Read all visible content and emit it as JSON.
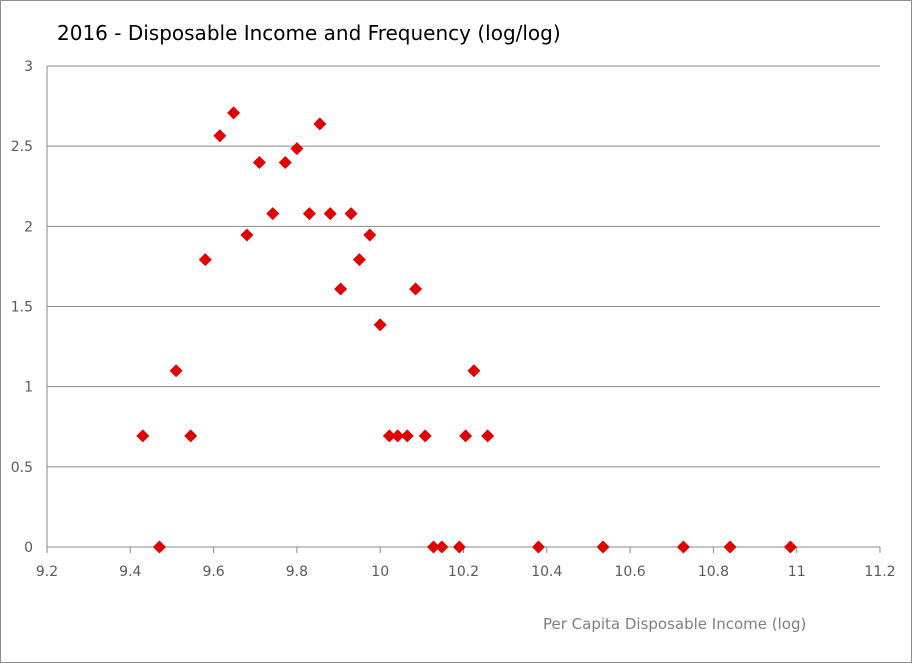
{
  "chart_data": {
    "type": "scatter",
    "title": "2016 - Disposable Income and Frequency (log/log)",
    "xlabel": "Per Capita Disposable Income (log)",
    "ylabel": "",
    "xlim": [
      9.2,
      11.2
    ],
    "ylim": [
      0,
      3
    ],
    "x_ticks": [
      "9.2",
      "9.4",
      "9.6",
      "9.8",
      "10",
      "10.2",
      "10.4",
      "10.6",
      "10.8",
      "11",
      "11.2"
    ],
    "y_ticks": [
      "0",
      "0.5",
      "1",
      "1.5",
      "2",
      "2.5",
      "3"
    ],
    "grid": "horizontal",
    "legend": "none",
    "marker": "diamond",
    "marker_color": "#e00000",
    "series": [
      {
        "points": [
          [
            9.43,
            0.693
          ],
          [
            9.47,
            0.0
          ],
          [
            9.51,
            1.099
          ],
          [
            9.545,
            0.693
          ],
          [
            9.58,
            1.792
          ],
          [
            9.615,
            2.565
          ],
          [
            9.648,
            2.708
          ],
          [
            9.68,
            1.946
          ],
          [
            9.71,
            2.398
          ],
          [
            9.742,
            2.079
          ],
          [
            9.772,
            2.398
          ],
          [
            9.8,
            2.485
          ],
          [
            9.83,
            2.079
          ],
          [
            9.855,
            2.639
          ],
          [
            9.88,
            2.079
          ],
          [
            9.905,
            1.609
          ],
          [
            9.93,
            2.079
          ],
          [
            9.95,
            1.792
          ],
          [
            9.975,
            1.946
          ],
          [
            10.0,
            1.386
          ],
          [
            10.022,
            0.693
          ],
          [
            10.042,
            0.693
          ],
          [
            10.065,
            0.693
          ],
          [
            10.085,
            1.609
          ],
          [
            10.108,
            0.693
          ],
          [
            10.128,
            0.0
          ],
          [
            10.148,
            0.0
          ],
          [
            10.19,
            0.0
          ],
          [
            10.205,
            0.693
          ],
          [
            10.225,
            1.099
          ],
          [
            10.258,
            0.693
          ],
          [
            10.38,
            0.0
          ],
          [
            10.535,
            0.0
          ],
          [
            10.728,
            0.0
          ],
          [
            10.84,
            0.0
          ],
          [
            10.985,
            0.0
          ]
        ]
      }
    ]
  }
}
